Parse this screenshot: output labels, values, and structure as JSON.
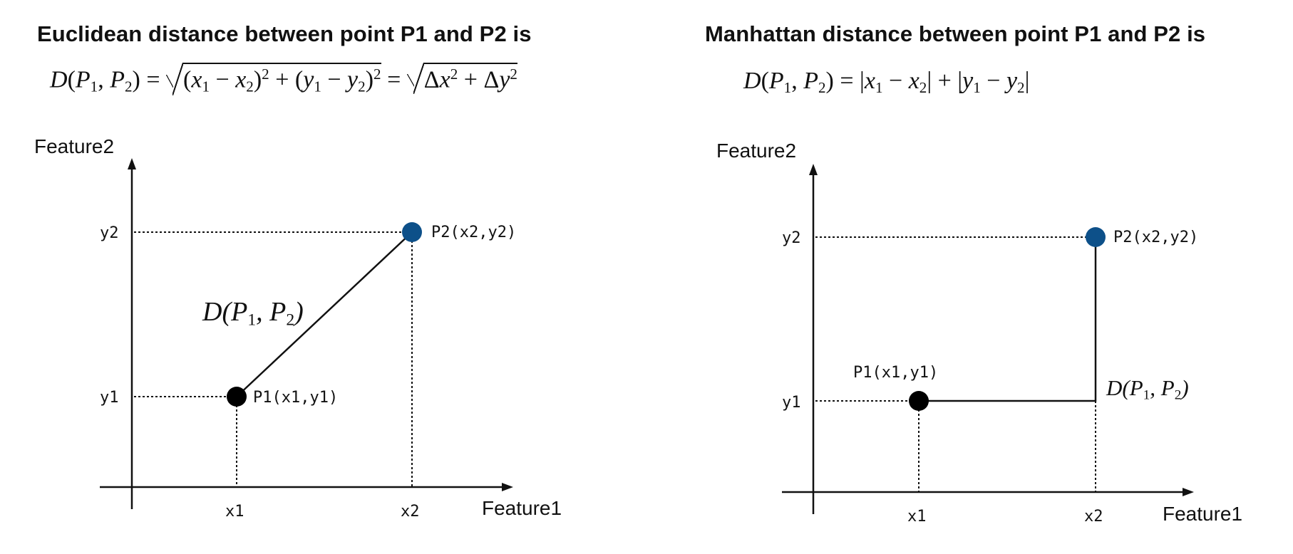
{
  "colors": {
    "p1": "#000000",
    "p2": "#0d5089",
    "line": "#111111"
  },
  "euclidean": {
    "title": "Euclidean distance between point P1 and P2 is",
    "axis_y": "Feature2",
    "axis_x": "Feature1",
    "ticks": {
      "x1": "x1",
      "x2": "x2",
      "y1": "y1",
      "y2": "y2"
    },
    "p1_label": "P1(x1,y1)",
    "p2_label": "P2(x2,y2)",
    "dist": {
      "D": "D",
      "P": "P",
      "one": "1",
      "two": "2"
    }
  },
  "manhattan": {
    "title": "Manhattan distance between point P1 and P2 is",
    "axis_y": "Feature2",
    "axis_x": "Feature1",
    "ticks": {
      "x1": "x1",
      "x2": "x2",
      "y1": "y1",
      "y2": "y2"
    },
    "p1_label": "P1(x1,y1)",
    "p2_label": "P2(x2,y2)",
    "dist": {
      "D": "D",
      "P": "P",
      "one": "1",
      "two": "2"
    }
  }
}
